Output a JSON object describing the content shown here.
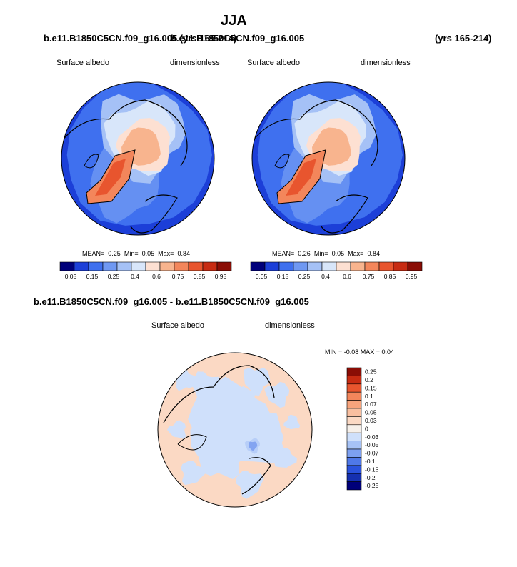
{
  "chart_data": {
    "type": "polar-contour-maps",
    "title": "JJA",
    "case_label_left": "b.e11.B1850C5CN.f09_g16.005 (yrs 165-214)",
    "case_label_right_overlap": "b.e11.B1850C5CN.f09_g16.005",
    "case_label_right_years": "(yrs 165-214)",
    "panels": [
      {
        "id": "left",
        "variable": "Surface albedo",
        "units": "dimensionless",
        "stats": {
          "mean_label": "MEAN=",
          "mean": "0.25",
          "min_label": "Min=",
          "min": "0.05",
          "max_label": "Max=",
          "max": "0.84"
        }
      },
      {
        "id": "right",
        "variable": "Surface albedo",
        "units": "dimensionless",
        "stats": {
          "mean_label": "MEAN=",
          "mean": "0.26",
          "min_label": "Min=",
          "min": "0.05",
          "max_label": "Max=",
          "max": "0.84"
        }
      }
    ],
    "colorbar_levels": [
      "0.05",
      "0.15",
      "0.25",
      "0.4",
      "0.6",
      "0.75",
      "0.85",
      "0.95"
    ],
    "colorbar_colors": [
      "#00007a",
      "#1c3fd8",
      "#3f70ef",
      "#6f98f2",
      "#a5c1f6",
      "#d8e6fa",
      "#fde0d2",
      "#f8b48e",
      "#f3865b",
      "#e8552e",
      "#c72b12",
      "#8a0d05"
    ],
    "diff": {
      "title": "b.e11.B1850C5CN.f09_g16.005 - b.e11.B1850C5CN.f09_g16.005",
      "variable": "Surface albedo",
      "units": "dimensionless",
      "min_max_label": "MIN =  -0.08 MAX =   0.04",
      "levels": [
        "0.25",
        "0.2",
        "0.15",
        "0.1",
        "0.07",
        "0.05",
        "0.03",
        "0",
        "-0.03",
        "-0.05",
        "-0.07",
        "-0.1",
        "-0.15",
        "-0.2",
        "-0.25"
      ],
      "colors": [
        "#8a0d05",
        "#c72b12",
        "#e8552e",
        "#f3865b",
        "#f8a47c",
        "#f9bfa0",
        "#fbd9c4",
        "#f6f0ea",
        "#cfe0fb",
        "#a6c2f6",
        "#7da0f1",
        "#4f78e8",
        "#2a52dc",
        "#1530b0",
        "#00007a"
      ]
    }
  }
}
